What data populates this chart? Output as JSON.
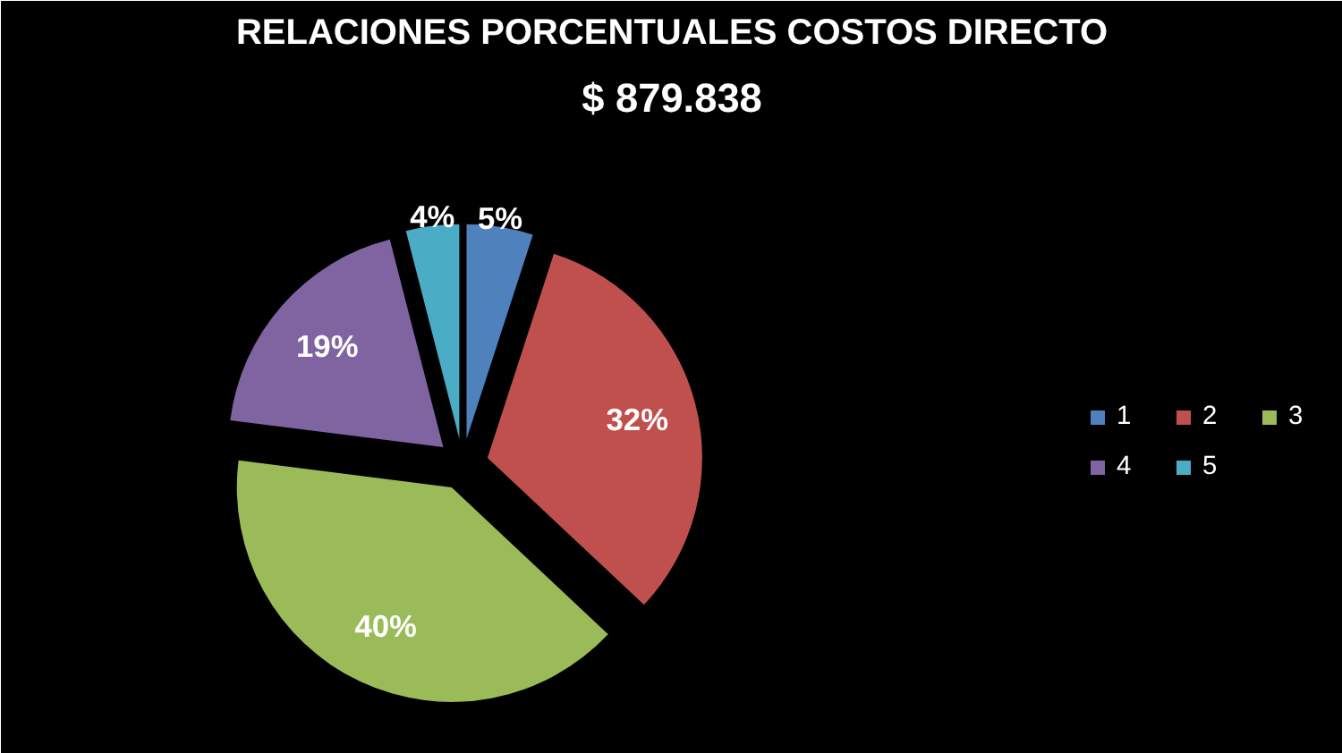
{
  "chart_data": {
    "type": "pie",
    "title": "RELACIONES PORCENTUALES COSTOS DIRECTO",
    "subtitle": "$ 879.838",
    "categories": [
      "1",
      "2",
      "3",
      "4",
      "5"
    ],
    "values": [
      5,
      32,
      40,
      19,
      4
    ],
    "colors": [
      "#4f81bd",
      "#c0504d",
      "#9bbb59",
      "#8064a2",
      "#4bacc6"
    ],
    "value_labels": [
      "5%",
      "32%",
      "40%",
      "19%",
      "4%"
    ],
    "legend": "right"
  }
}
